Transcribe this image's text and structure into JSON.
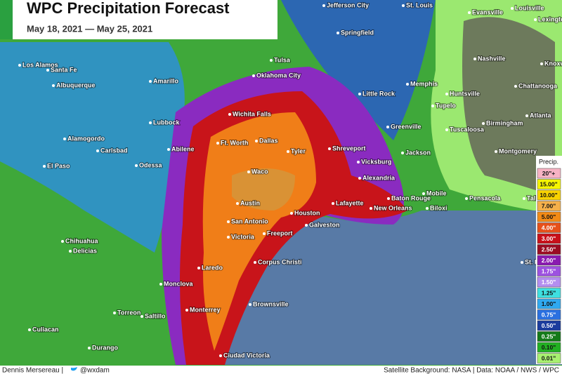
{
  "header": {
    "title": "WPC Precipitation Forecast",
    "dates": "May 18, 2021 — May 25, 2021"
  },
  "cities": [
    "Jefferson City",
    "St. Louis",
    "Evansville",
    "Louisville",
    "Lexington",
    "Springfield",
    "Los Alamos",
    "Santa Fe",
    "Tulsa",
    "Nashville",
    "Knoxville",
    "Oklahoma City",
    "Memphis",
    "Albuquerque",
    "Amarillo",
    "Little Rock",
    "Huntsville",
    "Chattanooga",
    "Wichita Falls",
    "Tupelo",
    "Atlanta",
    "Lubbock",
    "Greenville",
    "Tuscaloosa",
    "Birmingham",
    "Alamogordo",
    "Ft. Worth",
    "Dallas",
    "Tyler",
    "Shreveport",
    "Abilene",
    "Carlsbad",
    "Jackson",
    "Montgomery",
    "Odessa",
    "El Paso",
    "Vicksburg",
    "Waco",
    "Alexandria",
    "Mobile",
    "Pensacola",
    "Tall",
    "Baton Rouge",
    "Lafayette",
    "Austin",
    "Houston",
    "New Orleans",
    "Biloxi",
    "San Antonio",
    "Freeport",
    "Galveston",
    "Chihuahua",
    "Victoria",
    "Delicias",
    "St. Pete",
    "Laredo",
    "Corpus Christi",
    "Monclova",
    "Torreon",
    "Saltillo",
    "Monterrey",
    "Brownsville",
    "Culiacan",
    "Durango",
    "Ciudad Victoria"
  ],
  "legend": {
    "title": "Precip.",
    "items": [
      "20\"+",
      "15.00\"",
      "10.00\"",
      "7.00\"",
      "5.00\"",
      "4.00\"",
      "3.00\"",
      "2.50\"",
      "2.00\"",
      "1.75\"",
      "1.50\"",
      "1.25\"",
      "1.00\"",
      "0.75\"",
      "0.50\"",
      "0.25\"",
      "0.10\"",
      "0.01\""
    ]
  },
  "footer": {
    "author": "Dennis Mersereau |",
    "handle": "@wxdam",
    "credits": "Satellite Background: NASA | Data: NOAA / NWS / WPC"
  }
}
